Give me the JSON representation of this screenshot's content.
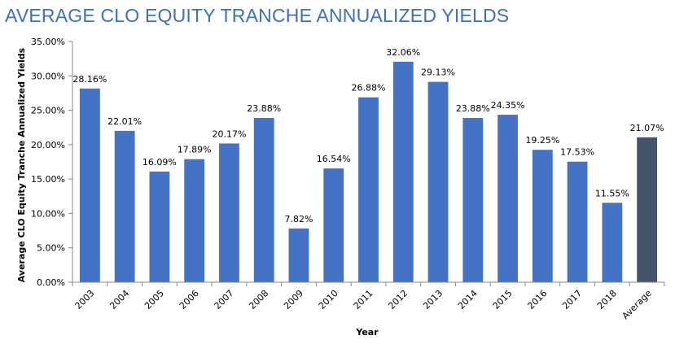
{
  "chart_data": {
    "type": "bar",
    "title": "AVERAGE CLO EQUITY TRANCHE ANNUALIZED YIELDS",
    "xlabel": "Year",
    "ylabel": "Average CLO Equity Tranche Annualized Yields",
    "ylim": [
      0,
      35
    ],
    "yticks": [
      "0.00%",
      "5.00%",
      "10.00%",
      "15.00%",
      "20.00%",
      "25.00%",
      "30.00%",
      "35.00%"
    ],
    "categories": [
      "2003",
      "2004",
      "2005",
      "2006",
      "2007",
      "2008",
      "2009",
      "2010",
      "2011",
      "2012",
      "2013",
      "2014",
      "2015",
      "2016",
      "2017",
      "2018",
      "Average"
    ],
    "values": [
      28.16,
      22.01,
      16.09,
      17.89,
      20.17,
      23.88,
      7.82,
      16.54,
      26.88,
      32.06,
      29.13,
      23.88,
      24.35,
      19.25,
      17.53,
      11.55,
      21.07
    ],
    "labels": [
      "28.16%",
      "22.01%",
      "16.09%",
      "17.89%",
      "20.17%",
      "23.88%",
      "7.82%",
      "16.54%",
      "26.88%",
      "32.06%",
      "29.13%",
      "23.88%",
      "24.35%",
      "19.25%",
      "17.53%",
      "11.55%",
      "21.07%"
    ],
    "colors": {
      "bar": "#4472c4",
      "average_bar": "#44546a",
      "axis": "#888888"
    }
  }
}
